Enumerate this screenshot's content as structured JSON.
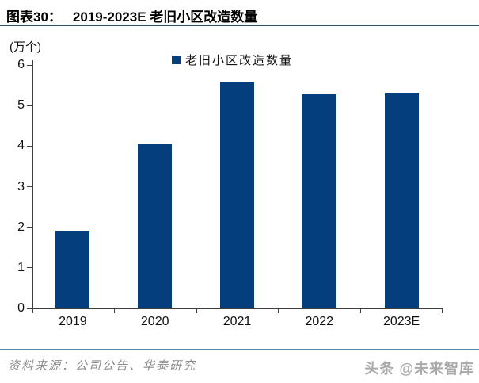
{
  "header": {
    "figure_label": "图表30：",
    "title": "2019-2023E 老旧小区改造数量"
  },
  "chart": {
    "unit_label": "(万个)",
    "legend": [
      {
        "label": "老旧小区改造数量",
        "marker": "square-icon"
      }
    ]
  },
  "chart_data": {
    "type": "bar",
    "title": "2019-2023E 老旧小区改造数量",
    "categories": [
      "2019",
      "2020",
      "2021",
      "2022",
      "2023E"
    ],
    "series": [
      {
        "name": "老旧小区改造数量",
        "values": [
          1.9,
          4.03,
          5.56,
          5.25,
          5.3
        ]
      }
    ],
    "xlabel": "",
    "ylabel": "(万个)",
    "ylim": [
      0,
      6
    ],
    "ytick_step": 1,
    "yticks": [
      0,
      1,
      2,
      3,
      4,
      5,
      6
    ],
    "grid": false,
    "legend_position": "top-center"
  },
  "footer": {
    "source": "资料来源：公司公告、华泰研究",
    "watermark": "头条 @未来智库"
  },
  "colors": {
    "bar": "#053e7c",
    "title_rule": "#31506f",
    "footer_rule": "#5d84a1",
    "axis": "#3f3f3f",
    "source_text": "#8c8c8c"
  }
}
